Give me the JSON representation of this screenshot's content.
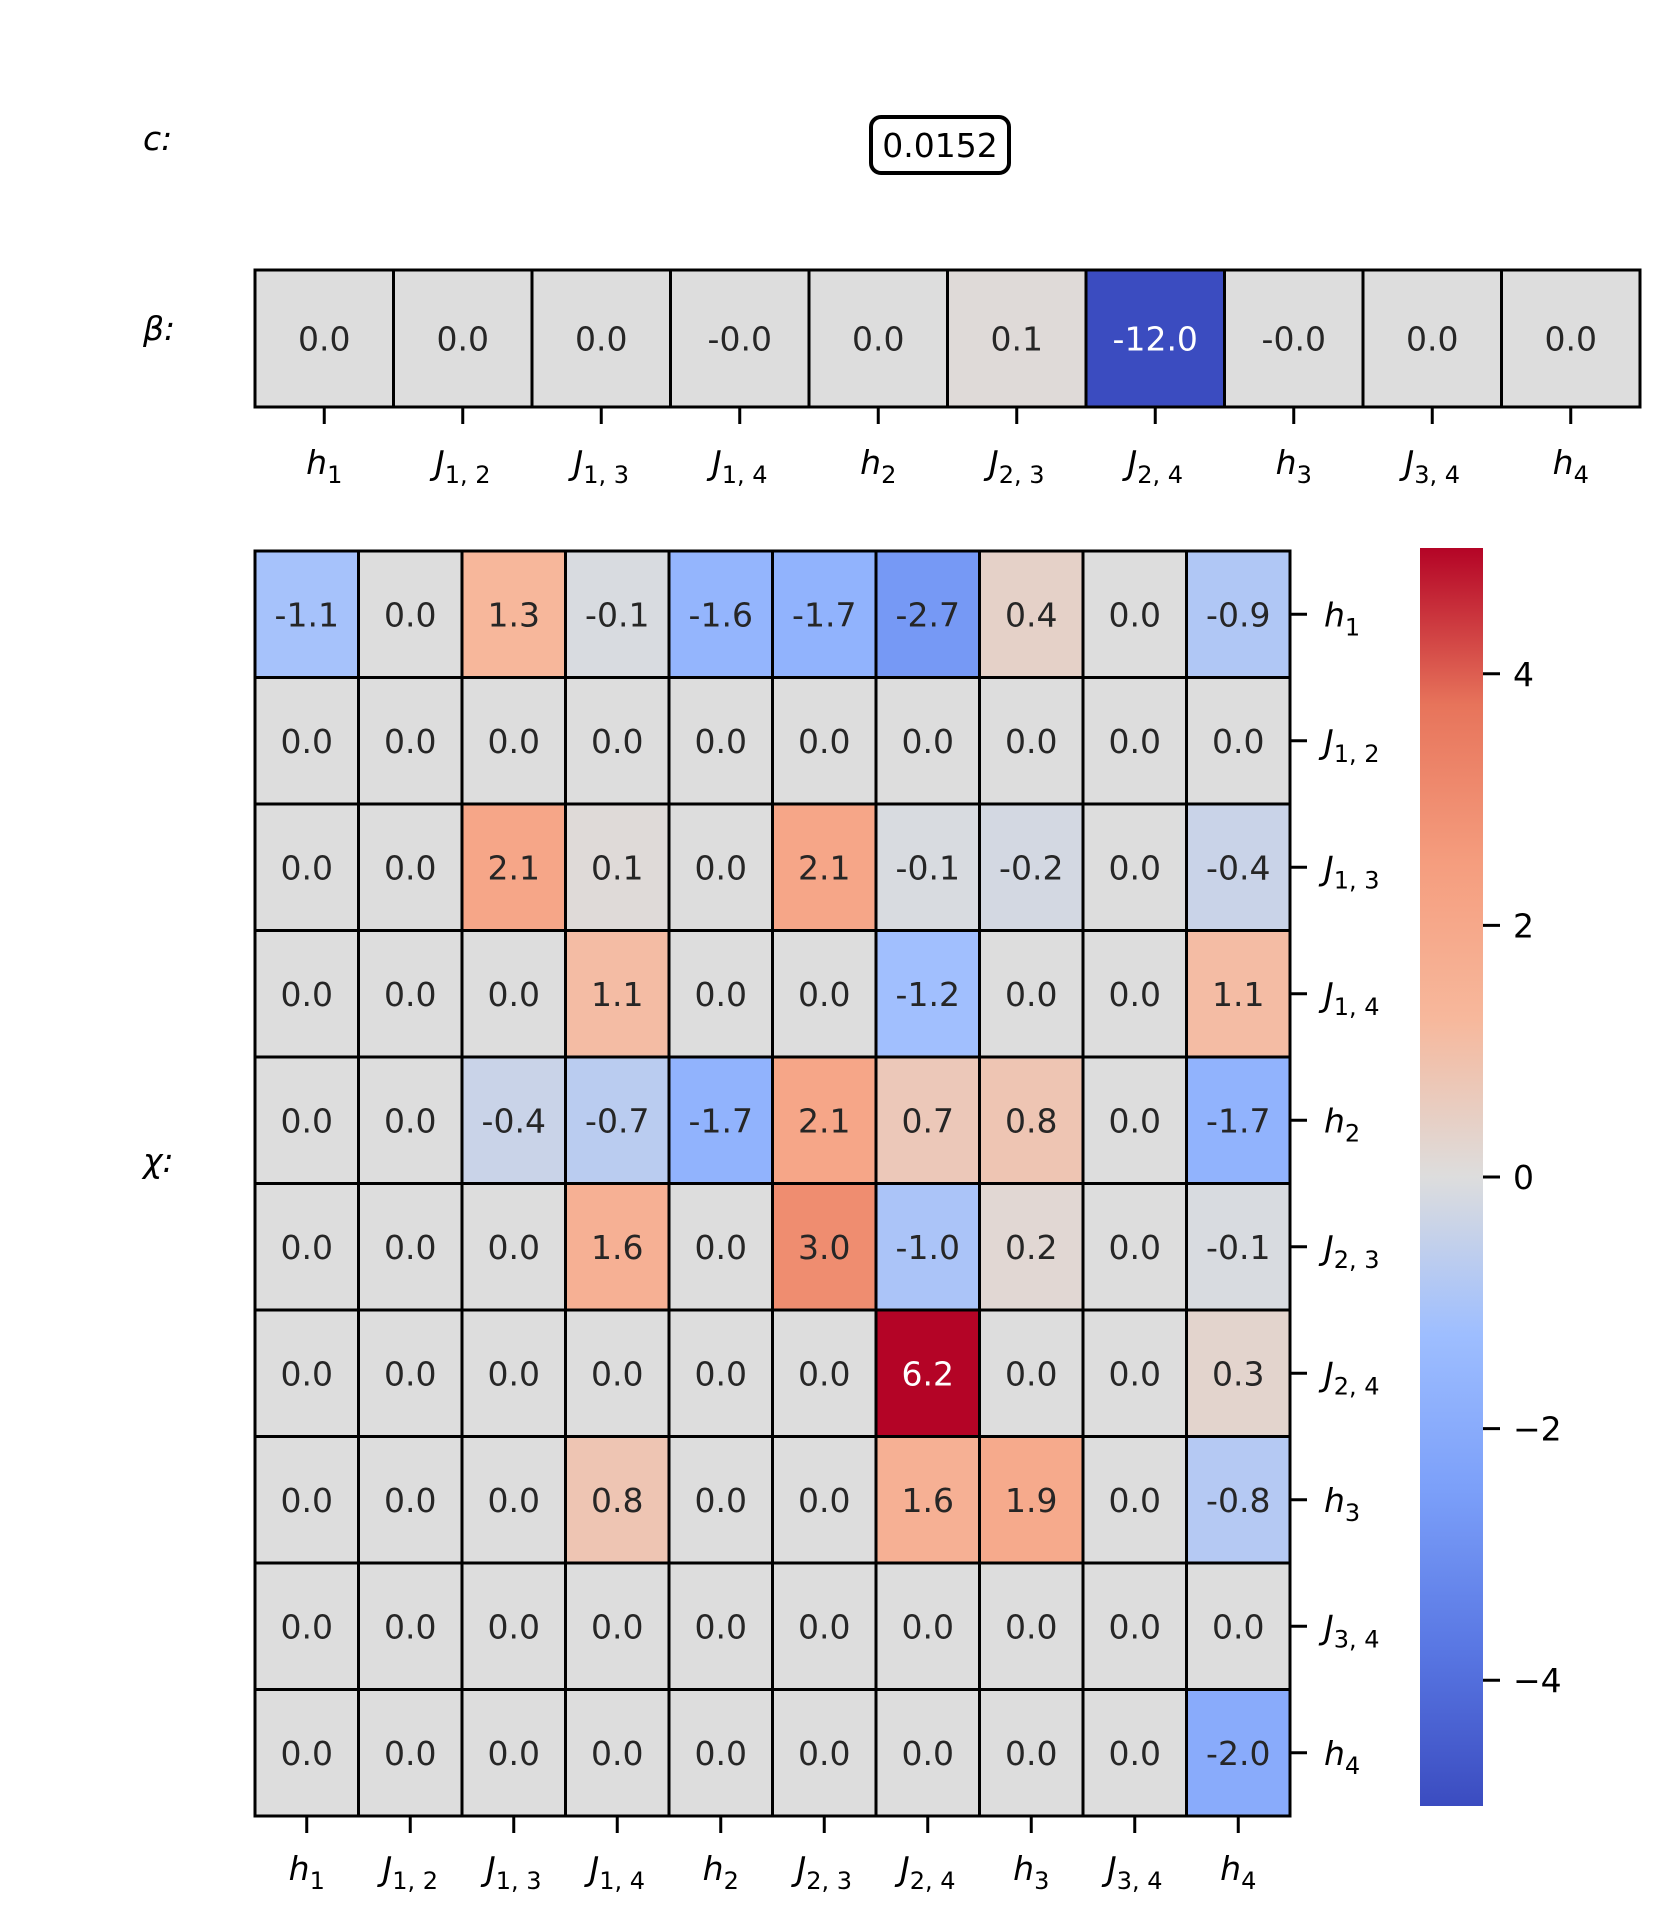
{
  "labels": {
    "c": "c:",
    "beta": "β:",
    "chi": "χ:"
  },
  "c_value": "0.0152",
  "chart_data": [
    {
      "type": "heatmap",
      "name": "beta",
      "rows": [
        ""
      ],
      "columns": [
        {
          "base": "h",
          "sub": "1"
        },
        {
          "base": "J",
          "sub": "1, 2"
        },
        {
          "base": "J",
          "sub": "1, 3"
        },
        {
          "base": "J",
          "sub": "1, 4"
        },
        {
          "base": "h",
          "sub": "2"
        },
        {
          "base": "J",
          "sub": "2, 3"
        },
        {
          "base": "J",
          "sub": "2, 4"
        },
        {
          "base": "h",
          "sub": "3"
        },
        {
          "base": "J",
          "sub": "3, 4"
        },
        {
          "base": "h",
          "sub": "4"
        }
      ],
      "values": [
        [
          0.0,
          0.0,
          0.0,
          -0.0,
          0.0,
          0.1,
          -12.0,
          -0.0,
          0.0,
          0.0
        ]
      ],
      "display": [
        [
          "0.0",
          "0.0",
          "0.0",
          "-0.0",
          "0.0",
          "0.1",
          "-12.0",
          "-0.0",
          "0.0",
          "0.0"
        ]
      ],
      "colormap": "coolwarm",
      "vmin": -5,
      "vmax": 5
    },
    {
      "type": "heatmap",
      "name": "chi",
      "rows": [
        {
          "base": "h",
          "sub": "1"
        },
        {
          "base": "J",
          "sub": "1, 2"
        },
        {
          "base": "J",
          "sub": "1, 3"
        },
        {
          "base": "J",
          "sub": "1, 4"
        },
        {
          "base": "h",
          "sub": "2"
        },
        {
          "base": "J",
          "sub": "2, 3"
        },
        {
          "base": "J",
          "sub": "2, 4"
        },
        {
          "base": "h",
          "sub": "3"
        },
        {
          "base": "J",
          "sub": "3, 4"
        },
        {
          "base": "h",
          "sub": "4"
        }
      ],
      "columns": [
        {
          "base": "h",
          "sub": "1"
        },
        {
          "base": "J",
          "sub": "1, 2"
        },
        {
          "base": "J",
          "sub": "1, 3"
        },
        {
          "base": "J",
          "sub": "1, 4"
        },
        {
          "base": "h",
          "sub": "2"
        },
        {
          "base": "J",
          "sub": "2, 3"
        },
        {
          "base": "J",
          "sub": "2, 4"
        },
        {
          "base": "h",
          "sub": "3"
        },
        {
          "base": "J",
          "sub": "3, 4"
        },
        {
          "base": "h",
          "sub": "4"
        }
      ],
      "values": [
        [
          -1.1,
          0.0,
          1.3,
          -0.1,
          -1.6,
          -1.7,
          -2.7,
          0.4,
          0.0,
          -0.9
        ],
        [
          0.0,
          0.0,
          0.0,
          0.0,
          0.0,
          0.0,
          0.0,
          0.0,
          0.0,
          0.0
        ],
        [
          0.0,
          0.0,
          2.1,
          0.1,
          0.0,
          2.1,
          -0.1,
          -0.2,
          0.0,
          -0.4
        ],
        [
          0.0,
          0.0,
          0.0,
          1.1,
          0.0,
          0.0,
          -1.2,
          0.0,
          0.0,
          1.1
        ],
        [
          0.0,
          0.0,
          -0.4,
          -0.7,
          -1.7,
          2.1,
          0.7,
          0.8,
          0.0,
          -1.7
        ],
        [
          0.0,
          0.0,
          0.0,
          1.6,
          0.0,
          3.0,
          -1.0,
          0.2,
          0.0,
          -0.1
        ],
        [
          0.0,
          0.0,
          0.0,
          0.0,
          0.0,
          0.0,
          6.2,
          0.0,
          0.0,
          0.3
        ],
        [
          0.0,
          0.0,
          0.0,
          0.8,
          0.0,
          0.0,
          1.6,
          1.9,
          0.0,
          -0.8
        ],
        [
          0.0,
          0.0,
          0.0,
          0.0,
          0.0,
          0.0,
          0.0,
          0.0,
          0.0,
          0.0
        ],
        [
          0.0,
          0.0,
          0.0,
          0.0,
          0.0,
          0.0,
          0.0,
          0.0,
          0.0,
          -2.0
        ]
      ],
      "colormap": "coolwarm",
      "vmin": -5,
      "vmax": 5,
      "colorbar": {
        "ticks": [
          4,
          2,
          0,
          -2,
          -4
        ],
        "tick_labels": [
          "4",
          "2",
          "0",
          "−2",
          "−4"
        ]
      }
    }
  ]
}
